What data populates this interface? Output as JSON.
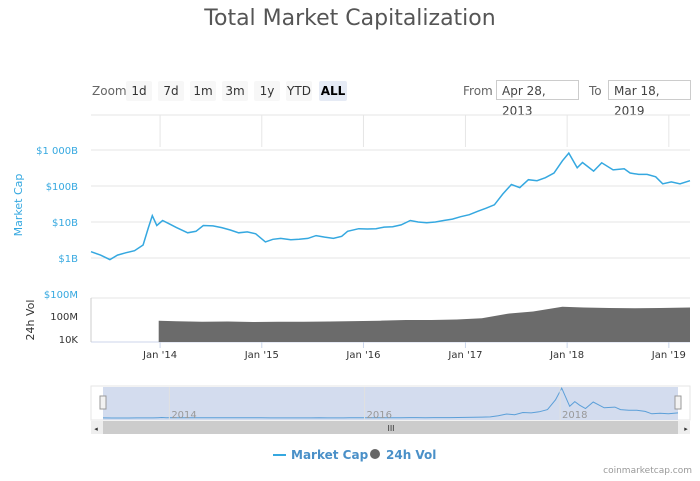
{
  "title": "Total Market Capitalization",
  "zoom": {
    "label": "Zoom",
    "buttons": [
      "1d",
      "7d",
      "1m",
      "3m",
      "1y",
      "YTD",
      "ALL"
    ],
    "active": "ALL"
  },
  "range": {
    "from_label": "From",
    "from_value": "Apr 28, 2013",
    "to_label": "To",
    "to_value": "Mar 18, 2019"
  },
  "credit": "coinmarketcap.com",
  "colors": {
    "market_cap": "#35a8e0",
    "volume": "#6b6b6b",
    "navigator_mask": "#d3dcee"
  },
  "chart_data": {
    "type": "line",
    "xlim": [
      "2013-04-28",
      "2019-03-18"
    ],
    "x_ticks": [
      "Jan '14",
      "Jan '15",
      "Jan '16",
      "Jan '17",
      "Jan '18",
      "Jan '19"
    ],
    "series": [
      {
        "name": "Market Cap",
        "axis_label": "Market Cap",
        "scale": "log",
        "y_ticks": [
          "$100M",
          "$1B",
          "$10B",
          "$100B",
          "$1 000B"
        ],
        "points": [
          [
            "2013-04-28",
            1.5
          ],
          [
            "2013-06-01",
            1.2
          ],
          [
            "2013-07-05",
            0.9
          ],
          [
            "2013-08-01",
            1.2
          ],
          [
            "2013-09-01",
            1.4
          ],
          [
            "2013-10-01",
            1.6
          ],
          [
            "2013-11-01",
            2.3
          ],
          [
            "2013-11-20",
            7
          ],
          [
            "2013-12-04",
            15
          ],
          [
            "2013-12-20",
            8
          ],
          [
            "2014-01-10",
            11
          ],
          [
            "2014-02-01",
            9
          ],
          [
            "2014-03-01",
            7
          ],
          [
            "2014-04-10",
            5
          ],
          [
            "2014-05-10",
            5.5
          ],
          [
            "2014-06-05",
            8
          ],
          [
            "2014-07-10",
            7.8
          ],
          [
            "2014-08-10",
            7
          ],
          [
            "2014-09-10",
            6
          ],
          [
            "2014-10-10",
            5
          ],
          [
            "2014-11-10",
            5.3
          ],
          [
            "2014-12-10",
            4.7
          ],
          [
            "2015-01-14",
            2.8
          ],
          [
            "2015-02-10",
            3.3
          ],
          [
            "2015-03-10",
            3.5
          ],
          [
            "2015-04-15",
            3.2
          ],
          [
            "2015-05-15",
            3.3
          ],
          [
            "2015-06-15",
            3.5
          ],
          [
            "2015-07-15",
            4.2
          ],
          [
            "2015-08-15",
            3.8
          ],
          [
            "2015-09-15",
            3.5
          ],
          [
            "2015-10-15",
            4
          ],
          [
            "2015-11-05",
            5.5
          ],
          [
            "2015-12-15",
            6.5
          ],
          [
            "2016-01-15",
            6.4
          ],
          [
            "2016-02-15",
            6.5
          ],
          [
            "2016-03-15",
            7.2
          ],
          [
            "2016-04-15",
            7.4
          ],
          [
            "2016-05-15",
            8.3
          ],
          [
            "2016-06-17",
            11
          ],
          [
            "2016-07-15",
            10
          ],
          [
            "2016-08-15",
            9.5
          ],
          [
            "2016-09-15",
            10
          ],
          [
            "2016-10-15",
            11
          ],
          [
            "2016-11-15",
            12
          ],
          [
            "2016-12-15",
            14
          ],
          [
            "2017-01-15",
            16
          ],
          [
            "2017-02-15",
            20
          ],
          [
            "2017-03-15",
            24
          ],
          [
            "2017-04-15",
            30
          ],
          [
            "2017-05-15",
            60
          ],
          [
            "2017-06-15",
            110
          ],
          [
            "2017-07-15",
            90
          ],
          [
            "2017-08-15",
            150
          ],
          [
            "2017-09-15",
            140
          ],
          [
            "2017-10-15",
            170
          ],
          [
            "2017-11-15",
            230
          ],
          [
            "2017-12-15",
            500
          ],
          [
            "2018-01-07",
            820
          ],
          [
            "2018-02-06",
            320
          ],
          [
            "2018-02-25",
            450
          ],
          [
            "2018-03-15",
            350
          ],
          [
            "2018-04-06",
            260
          ],
          [
            "2018-05-05",
            440
          ],
          [
            "2018-06-15",
            280
          ],
          [
            "2018-07-25",
            300
          ],
          [
            "2018-08-15",
            230
          ],
          [
            "2018-09-15",
            210
          ],
          [
            "2018-10-15",
            210
          ],
          [
            "2018-11-15",
            180
          ],
          [
            "2018-12-10",
            115
          ],
          [
            "2019-01-10",
            130
          ],
          [
            "2019-02-10",
            115
          ],
          [
            "2019-03-18",
            140
          ]
        ]
      },
      {
        "name": "24h Vol",
        "axis_label": "24h Vol",
        "scale": "log",
        "y_ticks": [
          "10K",
          "100M"
        ],
        "points": [
          [
            "2013-12-27",
            15000000
          ],
          [
            "2014-03-01",
            12000000
          ],
          [
            "2014-06-01",
            10000000
          ],
          [
            "2014-09-01",
            11000000
          ],
          [
            "2014-12-01",
            9000000
          ],
          [
            "2015-03-01",
            10000000
          ],
          [
            "2015-06-01",
            10000000
          ],
          [
            "2015-09-01",
            11000000
          ],
          [
            "2015-12-01",
            13000000
          ],
          [
            "2016-03-01",
            15000000
          ],
          [
            "2016-06-01",
            20000000
          ],
          [
            "2016-09-01",
            20000000
          ],
          [
            "2016-12-01",
            25000000
          ],
          [
            "2017-03-01",
            40000000
          ],
          [
            "2017-06-01",
            250000000
          ],
          [
            "2017-09-01",
            600000000
          ],
          [
            "2017-12-15",
            4000000000
          ],
          [
            "2018-03-01",
            3000000000
          ],
          [
            "2018-06-01",
            2500000000
          ],
          [
            "2018-09-01",
            2200000000
          ],
          [
            "2018-12-01",
            2500000000
          ],
          [
            "2019-03-18",
            3000000000
          ]
        ]
      }
    ],
    "navigator_ticks": [
      "2014",
      "2016",
      "2018"
    ],
    "legend": [
      "Market Cap",
      "24h Vol"
    ],
    "legend_placement": "bottom"
  }
}
